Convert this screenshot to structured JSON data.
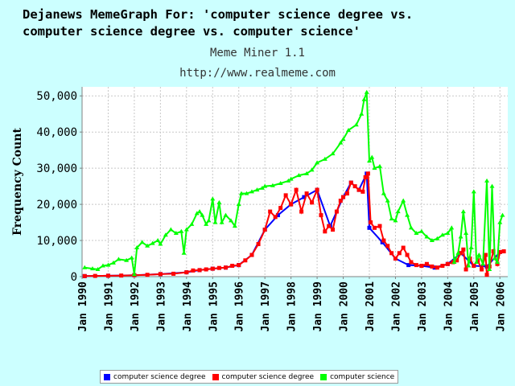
{
  "header": {
    "title_line1": "Dejanews MemeGraph For: 'computer science degree vs.",
    "title_line2": "computer science degree vs. computer science'",
    "subtitle": "Meme Miner 1.1",
    "url": "http://www.realmeme.com"
  },
  "colors": {
    "background": "#ccffff",
    "plot_background": "#ffffff",
    "series1": "#0000ff",
    "series2": "#ff0000",
    "series3": "#00ff00"
  },
  "chart_data": {
    "type": "line",
    "ylabel": "Frequency Count",
    "xlabel": "",
    "ylim": [
      0,
      52500
    ],
    "xlim": [
      1990.0,
      2006.3
    ],
    "yticks": [
      0,
      10000,
      20000,
      30000,
      40000,
      50000
    ],
    "ytick_labels": [
      "0",
      "10,000",
      "20,000",
      "30,000",
      "40,000",
      "50,000"
    ],
    "xticks": [
      1990,
      1991,
      1992,
      1993,
      1994,
      1995,
      1996,
      1997,
      1998,
      1999,
      2000,
      2001,
      2002,
      2003,
      2004,
      2005,
      2006
    ],
    "xtick_labels": [
      "Jan 1990",
      "Jan 1991",
      "Jan 1992",
      "Jan 1993",
      "Jan 1994",
      "Jan 1995",
      "Jan 1996",
      "Jan 1997",
      "Jan 1998",
      "Jan 1999",
      "Jan 2000",
      "Jan 2001",
      "Jan 2002",
      "Jan 2003",
      "Jan 2004",
      "Jan 2005",
      "Jan 2006"
    ],
    "grid": true,
    "legend_position": "bottom",
    "series": [
      {
        "name": "computer science degree",
        "color": "#0000ff",
        "points": [
          [
            1990.1,
            150
          ],
          [
            1991.0,
            250
          ],
          [
            1992.0,
            400
          ],
          [
            1993.0,
            700
          ],
          [
            1994.0,
            1200
          ],
          [
            1994.5,
            1800
          ],
          [
            1995.0,
            2200
          ],
          [
            1995.5,
            2500
          ],
          [
            1996.0,
            3200
          ],
          [
            1996.5,
            6000
          ],
          [
            1997.0,
            13000
          ],
          [
            1997.5,
            17000
          ],
          [
            1998.0,
            20000
          ],
          [
            1998.5,
            22000
          ],
          [
            1999.0,
            24000
          ],
          [
            1999.5,
            14000
          ],
          [
            2000.0,
            22000
          ],
          [
            2000.3,
            26000
          ],
          [
            2000.6,
            24000
          ],
          [
            2000.9,
            28500
          ],
          [
            2001.0,
            13500
          ],
          [
            2001.5,
            9500
          ],
          [
            2002.0,
            5000
          ],
          [
            2002.5,
            3200
          ],
          [
            2003.0,
            3000
          ],
          [
            2003.5,
            2500
          ],
          [
            2004.0,
            3500
          ],
          [
            2004.5,
            6500
          ],
          [
            2005.0,
            3000
          ],
          [
            2005.5,
            2800
          ],
          [
            2006.0,
            6800
          ]
        ]
      },
      {
        "name": "computer science degree",
        "color": "#ff0000",
        "points": [
          [
            1990.1,
            150
          ],
          [
            1990.5,
            200
          ],
          [
            1991.0,
            250
          ],
          [
            1991.5,
            300
          ],
          [
            1992.0,
            400
          ],
          [
            1992.5,
            500
          ],
          [
            1993.0,
            700
          ],
          [
            1993.5,
            800
          ],
          [
            1994.0,
            1200
          ],
          [
            1994.25,
            1700
          ],
          [
            1994.5,
            1800
          ],
          [
            1994.75,
            2000
          ],
          [
            1995.0,
            2200
          ],
          [
            1995.25,
            2400
          ],
          [
            1995.5,
            2500
          ],
          [
            1995.75,
            3000
          ],
          [
            1996.0,
            3200
          ],
          [
            1996.25,
            4500
          ],
          [
            1996.5,
            6000
          ],
          [
            1996.75,
            9000
          ],
          [
            1997.0,
            13000
          ],
          [
            1997.2,
            18000
          ],
          [
            1997.4,
            16500
          ],
          [
            1997.6,
            19000
          ],
          [
            1997.8,
            22500
          ],
          [
            1998.0,
            20000
          ],
          [
            1998.2,
            24000
          ],
          [
            1998.4,
            18000
          ],
          [
            1998.6,
            23000
          ],
          [
            1998.8,
            20500
          ],
          [
            1999.0,
            24000
          ],
          [
            1999.15,
            17000
          ],
          [
            1999.3,
            12500
          ],
          [
            1999.45,
            14000
          ],
          [
            1999.6,
            13000
          ],
          [
            1999.75,
            18000
          ],
          [
            1999.9,
            21000
          ],
          [
            2000.0,
            22000
          ],
          [
            2000.15,
            23000
          ],
          [
            2000.3,
            26000
          ],
          [
            2000.45,
            25000
          ],
          [
            2000.6,
            24000
          ],
          [
            2000.75,
            23500
          ],
          [
            2000.85,
            27500
          ],
          [
            2000.95,
            28500
          ],
          [
            2001.05,
            15000
          ],
          [
            2001.2,
            13500
          ],
          [
            2001.4,
            14000
          ],
          [
            2001.55,
            10000
          ],
          [
            2001.7,
            8500
          ],
          [
            2001.85,
            6500
          ],
          [
            2002.0,
            5000
          ],
          [
            2002.15,
            6500
          ],
          [
            2002.3,
            8000
          ],
          [
            2002.45,
            6000
          ],
          [
            2002.6,
            4000
          ],
          [
            2002.8,
            3200
          ],
          [
            2003.0,
            3000
          ],
          [
            2003.2,
            3500
          ],
          [
            2003.4,
            2800
          ],
          [
            2003.6,
            2500
          ],
          [
            2003.8,
            3000
          ],
          [
            2004.0,
            3500
          ],
          [
            2004.2,
            4000
          ],
          [
            2004.35,
            4500
          ],
          [
            2004.5,
            6500
          ],
          [
            2004.6,
            7500
          ],
          [
            2004.7,
            2000
          ],
          [
            2004.85,
            5000
          ],
          [
            2005.0,
            3000
          ],
          [
            2005.15,
            4500
          ],
          [
            2005.3,
            2000
          ],
          [
            2005.45,
            6000
          ],
          [
            2005.5,
            500
          ],
          [
            2005.6,
            2800
          ],
          [
            2005.75,
            7000
          ],
          [
            2005.9,
            3500
          ],
          [
            2006.0,
            6800
          ],
          [
            2006.15,
            7000
          ]
        ]
      },
      {
        "name": "computer science",
        "color": "#00ff00",
        "points": [
          [
            1990.1,
            2500
          ],
          [
            1990.4,
            2200
          ],
          [
            1990.6,
            2000
          ],
          [
            1990.8,
            3000
          ],
          [
            1991.0,
            3200
          ],
          [
            1991.2,
            3800
          ],
          [
            1991.4,
            4800
          ],
          [
            1991.7,
            4500
          ],
          [
            1991.9,
            5200
          ],
          [
            1992.0,
            600
          ],
          [
            1992.1,
            8000
          ],
          [
            1992.3,
            9500
          ],
          [
            1992.5,
            8500
          ],
          [
            1992.7,
            9200
          ],
          [
            1992.9,
            10000
          ],
          [
            1993.0,
            9000
          ],
          [
            1993.2,
            11500
          ],
          [
            1993.4,
            13000
          ],
          [
            1993.6,
            12000
          ],
          [
            1993.8,
            12500
          ],
          [
            1993.9,
            6500
          ],
          [
            1994.0,
            13000
          ],
          [
            1994.2,
            14500
          ],
          [
            1994.4,
            17500
          ],
          [
            1994.5,
            18000
          ],
          [
            1994.6,
            17000
          ],
          [
            1994.75,
            14500
          ],
          [
            1994.85,
            15500
          ],
          [
            1995.0,
            21500
          ],
          [
            1995.1,
            15000
          ],
          [
            1995.25,
            20500
          ],
          [
            1995.35,
            15000
          ],
          [
            1995.5,
            17000
          ],
          [
            1995.7,
            15500
          ],
          [
            1995.85,
            14000
          ],
          [
            1996.0,
            20000
          ],
          [
            1996.1,
            23000
          ],
          [
            1996.3,
            23000
          ],
          [
            1996.5,
            23500
          ],
          [
            1996.7,
            24000
          ],
          [
            1996.9,
            24500
          ],
          [
            1997.0,
            25000
          ],
          [
            1997.3,
            25200
          ],
          [
            1997.6,
            25800
          ],
          [
            1997.9,
            26500
          ],
          [
            1998.0,
            27000
          ],
          [
            1998.3,
            28000
          ],
          [
            1998.6,
            28500
          ],
          [
            1998.8,
            29500
          ],
          [
            1999.0,
            31500
          ],
          [
            1999.3,
            32500
          ],
          [
            1999.6,
            34000
          ],
          [
            1999.9,
            37000
          ],
          [
            2000.0,
            38000
          ],
          [
            2000.2,
            40500
          ],
          [
            2000.5,
            42000
          ],
          [
            2000.7,
            45000
          ],
          [
            2000.8,
            49000
          ],
          [
            2000.9,
            51000
          ],
          [
            2001.0,
            32000
          ],
          [
            2001.1,
            33000
          ],
          [
            2001.2,
            30000
          ],
          [
            2001.4,
            30500
          ],
          [
            2001.55,
            23000
          ],
          [
            2001.7,
            21000
          ],
          [
            2001.85,
            16000
          ],
          [
            2002.0,
            15500
          ],
          [
            2002.1,
            18000
          ],
          [
            2002.3,
            21000
          ],
          [
            2002.45,
            17000
          ],
          [
            2002.6,
            13500
          ],
          [
            2002.8,
            12000
          ],
          [
            2003.0,
            12500
          ],
          [
            2003.2,
            11000
          ],
          [
            2003.4,
            10000
          ],
          [
            2003.6,
            10500
          ],
          [
            2003.8,
            11500
          ],
          [
            2004.0,
            12000
          ],
          [
            2004.15,
            13500
          ],
          [
            2004.25,
            4000
          ],
          [
            2004.4,
            6500
          ],
          [
            2004.5,
            11000
          ],
          [
            2004.6,
            18000
          ],
          [
            2004.7,
            12000
          ],
          [
            2004.8,
            3000
          ],
          [
            2004.9,
            8000
          ],
          [
            2005.0,
            23500
          ],
          [
            2005.1,
            4000
          ],
          [
            2005.2,
            6000
          ],
          [
            2005.35,
            3500
          ],
          [
            2005.5,
            26500
          ],
          [
            2005.6,
            2000
          ],
          [
            2005.7,
            25000
          ],
          [
            2005.8,
            5000
          ],
          [
            2005.9,
            4000
          ],
          [
            2006.0,
            15000
          ],
          [
            2006.1,
            17000
          ]
        ]
      }
    ]
  }
}
